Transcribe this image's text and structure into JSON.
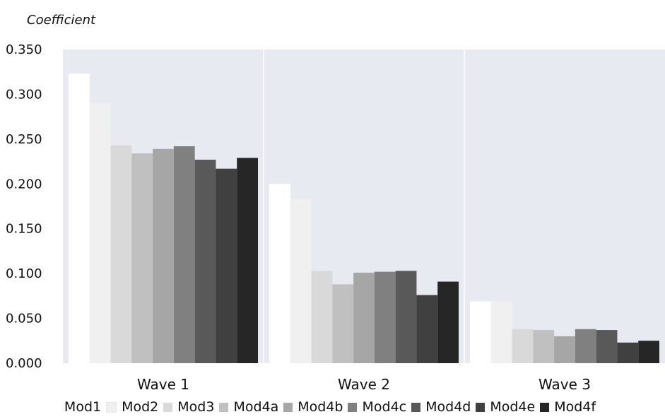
{
  "chart_data": {
    "type": "bar",
    "ylabel": "Coefficient",
    "ylim": [
      0,
      0.35
    ],
    "yticks": [
      "0.000",
      "0.050",
      "0.100",
      "0.150",
      "0.200",
      "0.250",
      "0.300",
      "0.350"
    ],
    "categories": [
      "Wave 1",
      "Wave 2",
      "Wave 3"
    ],
    "series": [
      {
        "name": "Mod1",
        "color": "#ffffff",
        "values": [
          0.323,
          0.2,
          0.069
        ]
      },
      {
        "name": "Mod2",
        "color": "#f0f0f0",
        "values": [
          0.29,
          0.183,
          0.069
        ]
      },
      {
        "name": "Mod3",
        "color": "#d9d9d9",
        "values": [
          0.243,
          0.103,
          0.038
        ]
      },
      {
        "name": "Mod4a",
        "color": "#c0c0c0",
        "values": [
          0.234,
          0.088,
          0.037
        ]
      },
      {
        "name": "Mod4b",
        "color": "#a6a6a6",
        "values": [
          0.239,
          0.101,
          0.03
        ]
      },
      {
        "name": "Mod4c",
        "color": "#808080",
        "values": [
          0.242,
          0.102,
          0.038
        ]
      },
      {
        "name": "Mod4d",
        "color": "#595959",
        "values": [
          0.227,
          0.103,
          0.037
        ]
      },
      {
        "name": "Mod4e",
        "color": "#404040",
        "values": [
          0.217,
          0.076,
          0.023
        ]
      },
      {
        "name": "Mod4f",
        "color": "#262626",
        "values": [
          0.229,
          0.091,
          0.025
        ]
      }
    ],
    "plot_background": "#e8eaf2",
    "grid": false,
    "legend_position": "bottom"
  }
}
